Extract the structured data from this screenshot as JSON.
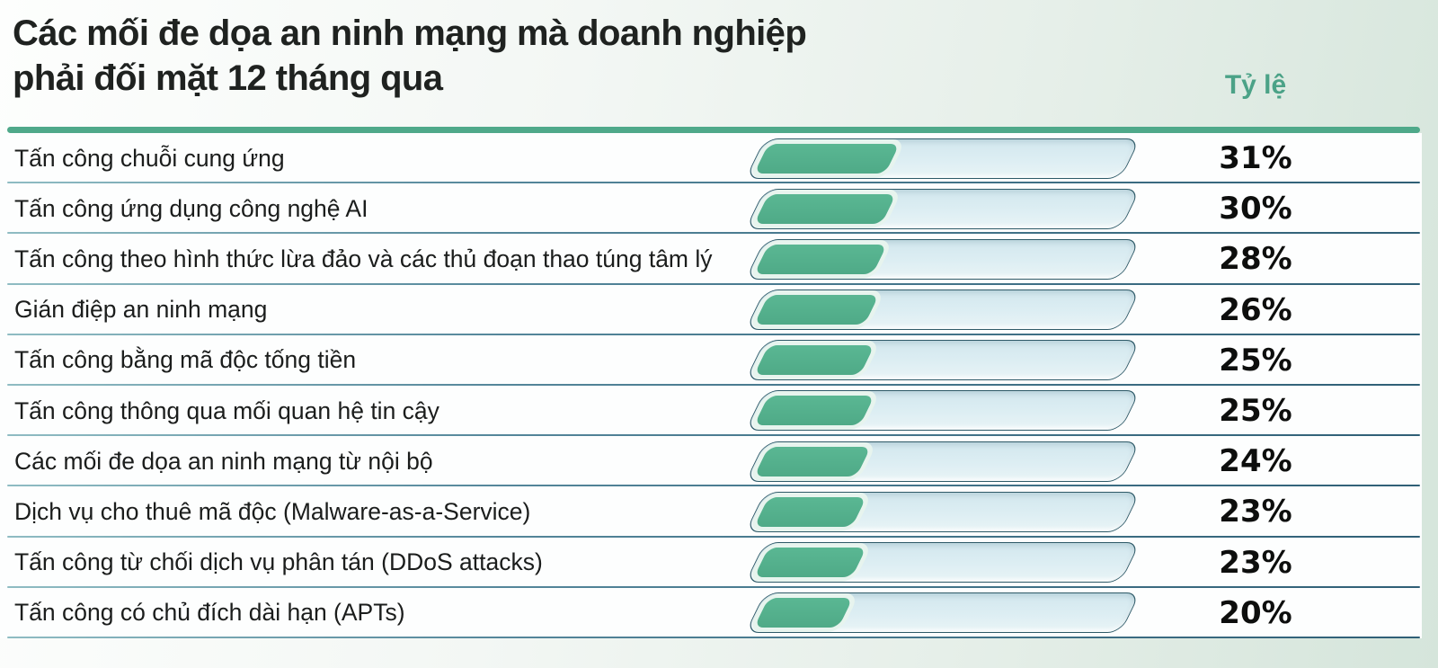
{
  "header": {
    "title_line1": "Các mối đe dọa an ninh mạng mà doanh nghiệp",
    "title_line2": "phải đối mặt 12 tháng qua",
    "rate_column_label": "Tỷ lệ"
  },
  "colors": {
    "accent_green": "#4fa98a",
    "bar_fill_green": "#55b18e",
    "bar_track_blue": "#ddeef3",
    "bar_border": "#2e5a68",
    "separator_teal": "#2f5f76",
    "rate_header_text": "#4ba287",
    "body_text": "#1b1d1c"
  },
  "chart_data": {
    "type": "bar",
    "orientation": "horizontal",
    "title": "Các mối đe dọa an ninh mạng mà doanh nghiệp phải đối mặt 12 tháng qua",
    "value_column_label": "Tỷ lệ",
    "unit": "%",
    "categories": [
      "Tấn công chuỗi cung ứng",
      "Tấn công ứng dụng công nghệ AI",
      "Tấn công theo hình thức lừa đảo và các thủ đoạn thao túng tâm lý",
      "Gián điệp an ninh mạng",
      "Tấn công bằng mã độc tống tiền",
      "Tấn công thông qua mối quan hệ tin cậy",
      "Các mối đe dọa an ninh mạng từ nội bộ",
      "Dịch vụ cho thuê mã độc (Malware-as-a-Service)",
      "Tấn công từ chối dịch vụ phân tán (DDoS attacks)",
      "Tấn công có chủ đích dài hạn (APTs)"
    ],
    "values": [
      31,
      30,
      28,
      26,
      25,
      25,
      24,
      23,
      23,
      20
    ],
    "value_labels": [
      "31%",
      "30%",
      "28%",
      "26%",
      "25%",
      "25%",
      "24%",
      "23%",
      "23%",
      "20%"
    ],
    "bar_scale_max": 88,
    "grid": false,
    "legend": false
  }
}
